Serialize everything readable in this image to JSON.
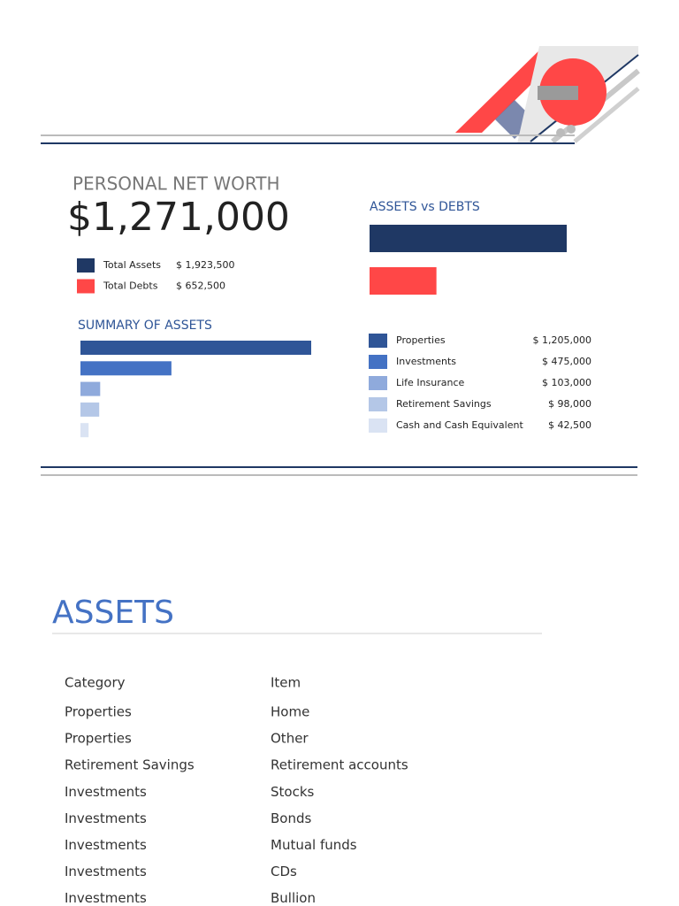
{
  "net_worth": {
    "title": "PERSONAL NET WORTH",
    "value": "$1,271,000"
  },
  "chart_data": [
    {
      "type": "hbar",
      "title": "ASSETS vs DEBTS",
      "categories": [
        "Total Assets",
        "Total Debts"
      ],
      "values": [
        1923500,
        652500
      ],
      "value_labels": [
        "$ 1,923,500",
        "$ 652,500"
      ],
      "colors": [
        "#1f3864",
        "#ff4747"
      ]
    },
    {
      "type": "hbar",
      "title": "SUMMARY OF ASSETS",
      "categories": [
        "Properties",
        "Investments",
        "Life Insurance",
        "Retirement Savings",
        "Cash and Cash Equivalent"
      ],
      "values": [
        1205000,
        475000,
        103000,
        98000,
        42500
      ],
      "value_labels": [
        "$ 1,205,000",
        "$ 475,000",
        "$ 103,000",
        "$ 98,000",
        "$ 42,500"
      ],
      "colors": [
        "#2f5597",
        "#4472c4",
        "#8faadc",
        "#b4c7e7",
        "#dae3f3"
      ]
    }
  ],
  "assets": {
    "title": "ASSETS",
    "table": {
      "header": [
        "Category",
        "Item"
      ],
      "rows": [
        [
          "Properties",
          "Home"
        ],
        [
          "Properties",
          "Other"
        ],
        [
          "Retirement Savings",
          "Retirement accounts"
        ],
        [
          "Investments",
          "Stocks"
        ],
        [
          "Investments",
          "Bonds"
        ],
        [
          "Investments",
          "Mutual funds"
        ],
        [
          "Investments",
          "CDs"
        ],
        [
          "Investments",
          "Bullion"
        ]
      ]
    }
  }
}
